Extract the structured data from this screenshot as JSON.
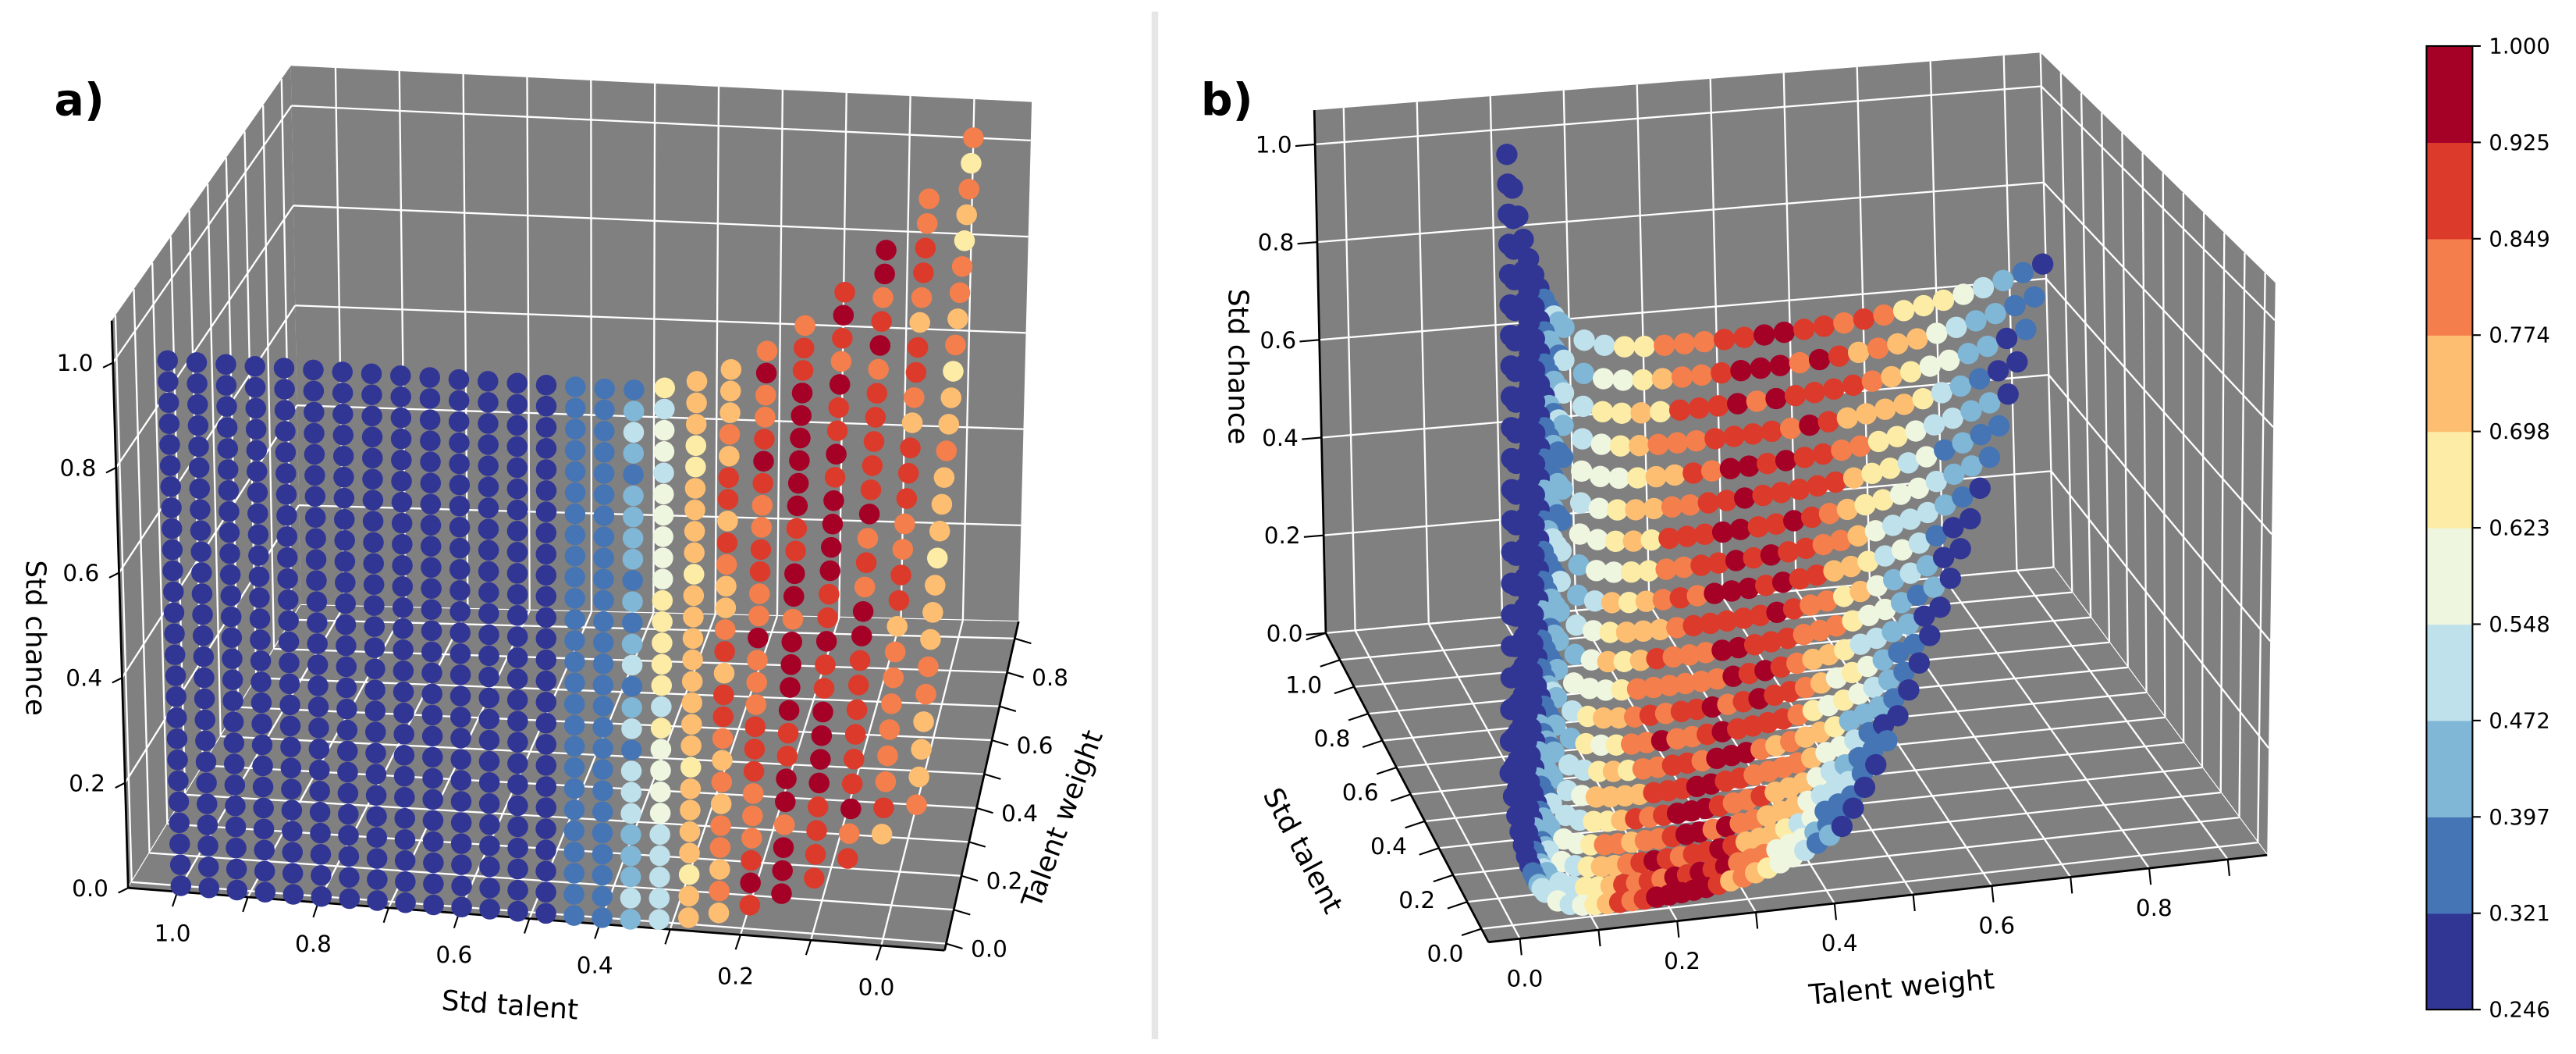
{
  "chart_data": {
    "type": "scatter3d",
    "colorbar": {
      "ticks": [
        "0.246",
        "0.321",
        "0.397",
        "0.472",
        "0.548",
        "0.623",
        "0.698",
        "0.774",
        "0.849",
        "0.925",
        "1.000"
      ],
      "edges": [
        0.246,
        0.321,
        0.397,
        0.472,
        0.548,
        0.623,
        0.698,
        0.774,
        0.849,
        0.925,
        1.0
      ],
      "colors": [
        "#313695",
        "#4575b4",
        "#80b6d6",
        "#bfe1ec",
        "#eef6e0",
        "#fdeca6",
        "#fdbe72",
        "#f57f4c",
        "#dc3a2b",
        "#a50026"
      ],
      "colormap": "RdYlBu_r (10 bins)"
    },
    "panels": [
      {
        "label": "a)",
        "x_axis": {
          "label": "Std talent",
          "range": [
            1.07,
            -0.09
          ],
          "ticks": [
            1.0,
            0.8,
            0.6,
            0.4,
            0.2,
            0.0
          ]
        },
        "y_axis": {
          "label": "Talent weight",
          "range": [
            -0.02,
            0.95
          ],
          "ticks": [
            0.0,
            0.2,
            0.4,
            0.6,
            0.8
          ]
        },
        "z_axis": {
          "label": "Std chance",
          "range": [
            0,
            1.08
          ],
          "ticks": [
            0.0,
            0.2,
            0.4,
            0.6,
            0.8,
            1.0
          ]
        },
        "grid": true,
        "points": {
          "std_talent_values": {
            "start": 0,
            "stop": 1,
            "step": 0.04
          },
          "std_chance_values": {
            "start": 0,
            "stop": 1,
            "step": 0.04
          },
          "talent_weight_approx": "0 for std talent >= 0.4, rising to ~0.95 as std talent -> 0 at high std chance",
          "color_value_approx": "0.25-0.32 (dark blue) for std talent >= 0.4; 0.6-1.0 (yellow-red) for std talent 0.05-0.25"
        }
      },
      {
        "label": "b)",
        "x_axis": {
          "label": "Talent weight",
          "range": [
            -0.04,
            0.95
          ],
          "ticks": [
            0.0,
            0.2,
            0.4,
            0.6,
            0.8
          ]
        },
        "y_axis": {
          "label": "Std talent",
          "range": [
            -0.05,
            1.1
          ],
          "ticks": [
            0.0,
            0.2,
            0.4,
            0.6,
            0.8,
            1.0
          ]
        },
        "z_axis": {
          "label": "Std chance",
          "range": [
            0,
            1.07
          ],
          "ticks": [
            0.0,
            0.2,
            0.4,
            0.6,
            0.8,
            1.0
          ]
        },
        "grid": true,
        "points": {
          "std_talent_values": {
            "start": 0,
            "stop": 1,
            "step": 0.05
          },
          "std_chance_approx": "valley: ~1.0 wall at low talent weight, floor ~0.02 (std talent 0) to ~0.6 (std talent 1)",
          "color_value_approx": "dark blue on the wall, 0.7-1.0 (orange-red) at talent weight 0.3-0.7"
        }
      }
    ]
  }
}
